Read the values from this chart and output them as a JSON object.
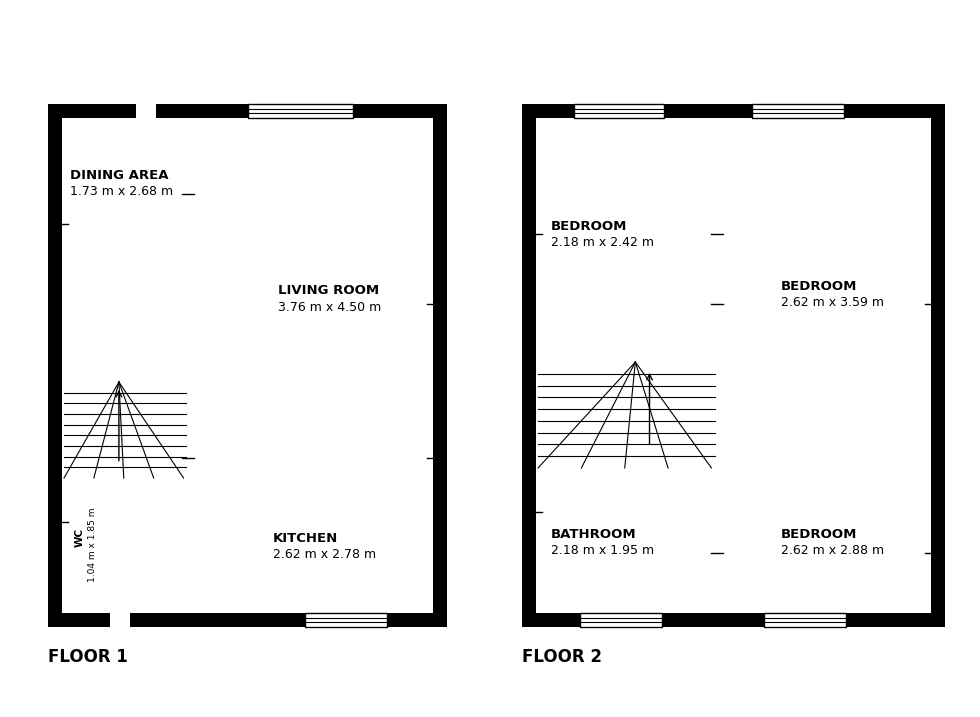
{
  "floor1_label": "FLOOR 1",
  "floor2_label": "FLOOR 2",
  "rooms": {
    "dining_area": {
      "label": "DINING AREA",
      "dim": "1.73 m x 2.68 m"
    },
    "living_room": {
      "label": "LIVING ROOM",
      "dim": "3.76 m x 4.50 m"
    },
    "kitchen": {
      "label": "KITCHEN",
      "dim": "2.62 m x 2.78 m"
    },
    "wc": {
      "label": "WC",
      "dim": "1.04 m x 1.85 m"
    },
    "bed1": {
      "label": "BEDROOM",
      "dim": "2.18 m x 2.42 m"
    },
    "bed2": {
      "label": "BEDROOM",
      "dim": "2.62 m x 3.59 m"
    },
    "bed3": {
      "label": "BEDROOM",
      "dim": "2.62 m x 2.88 m"
    },
    "bathroom": {
      "label": "BATHROOM",
      "dim": "2.18 m x 1.95 m"
    }
  },
  "f1": {
    "L": 48,
    "R": 447,
    "B": 90,
    "T": 613
  },
  "f2": {
    "L": 522,
    "R": 945,
    "B": 90,
    "T": 613
  },
  "wt": 14
}
